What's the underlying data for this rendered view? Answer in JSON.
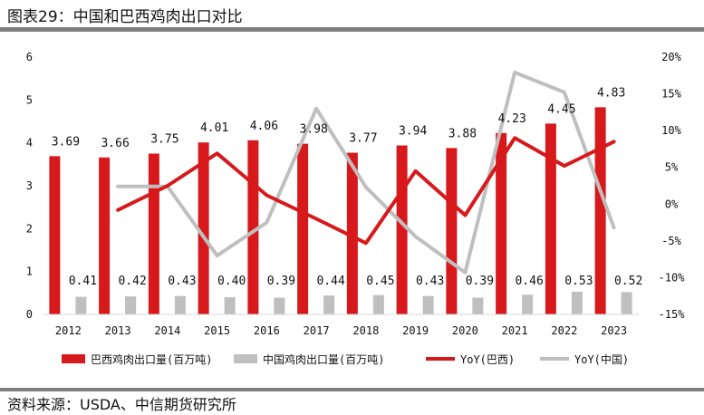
{
  "header": {
    "title": "图表29：中国和巴西鸡肉出口对比"
  },
  "footer": {
    "source": "资料来源：USDA、中信期货研究所"
  },
  "colors": {
    "brazil": "#d7191c",
    "china": "#bfbfbf",
    "rule": "#7f7f7f",
    "text": "#111111"
  },
  "chart_data": {
    "type": "bar",
    "title": "中国和巴西鸡肉出口对比",
    "categories": [
      "2012",
      "2013",
      "2014",
      "2015",
      "2016",
      "2017",
      "2018",
      "2019",
      "2020",
      "2021",
      "2022",
      "2023"
    ],
    "series": [
      {
        "name": "巴西鸡肉出口量(百万吨)",
        "kind": "bar",
        "axis": "left",
        "values": [
          3.69,
          3.66,
          3.75,
          4.01,
          4.06,
          3.98,
          3.77,
          3.94,
          3.88,
          4.23,
          4.45,
          4.83
        ],
        "labels": [
          "3.69",
          "3.66",
          "3.75",
          "4.01",
          "4.06",
          "3.98",
          "3.77",
          "3.94",
          "3.88",
          "4.23",
          "4.45",
          "4.83"
        ]
      },
      {
        "name": "中国鸡肉出口量(百万吨)",
        "kind": "bar",
        "axis": "left",
        "values": [
          0.41,
          0.42,
          0.43,
          0.4,
          0.39,
          0.44,
          0.45,
          0.43,
          0.39,
          0.46,
          0.53,
          0.52
        ],
        "labels": [
          "0.41",
          "0.42",
          "0.43",
          "0.40",
          "0.39",
          "0.44",
          "0.45",
          "0.43",
          "0.39",
          "0.46",
          "0.53",
          "0.52"
        ]
      },
      {
        "name": "YoY(巴西)",
        "kind": "line",
        "axis": "right",
        "values": [
          null,
          -0.8,
          2.5,
          6.9,
          1.2,
          -2.0,
          -5.3,
          4.5,
          -1.5,
          9.0,
          5.2,
          8.5
        ]
      },
      {
        "name": "YoY(中国)",
        "kind": "line",
        "axis": "right",
        "values": [
          null,
          2.4,
          2.4,
          -7.0,
          -2.5,
          13.0,
          2.3,
          -4.4,
          -9.3,
          17.9,
          15.2,
          -3.2
        ]
      }
    ],
    "ylim_left": [
      0,
      6
    ],
    "yticks_left": [
      "0",
      "1",
      "2",
      "3",
      "4",
      "5",
      "6"
    ],
    "ylim_right": [
      -15,
      20
    ],
    "yticks_right": [
      "-15%",
      "-10%",
      "-5%",
      "0%",
      "5%",
      "10%",
      "15%",
      "20%"
    ],
    "legend": [
      "巴西鸡肉出口量(百万吨)",
      "中国鸡肉出口量(百万吨)",
      "YoY(巴西)",
      "YoY(中国)"
    ],
    "legend_position": "bottom",
    "grid": false
  }
}
